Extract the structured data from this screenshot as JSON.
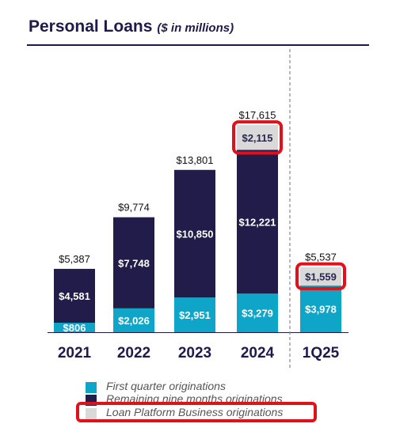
{
  "page": {
    "title": "Personal Loans",
    "subtitle": "($ in millions)"
  },
  "colors": {
    "first_quarter": "#0ea5c9",
    "remaining": "#221c4a",
    "platform": "#d9d9d9",
    "highlight": "#e1111a",
    "axis": "#1e1b4b",
    "divider": "#8a8a8a"
  },
  "legend": [
    {
      "key": "first_quarter",
      "label": "First quarter originations",
      "color": "#0ea5c9"
    },
    {
      "key": "remaining",
      "label": "Remaining nine months originations",
      "color": "#221c4a"
    },
    {
      "key": "platform",
      "label": "Loan Platform Business originations",
      "color": "#d9d9d9",
      "highlighted": true
    }
  ],
  "chart_data": {
    "type": "bar",
    "stacked": true,
    "title": "Personal Loans",
    "subtitle": "($ in millions)",
    "categories": [
      "2021",
      "2022",
      "2023",
      "2024",
      "1Q25"
    ],
    "series": [
      {
        "name": "First quarter originations",
        "key": "first_quarter",
        "values": [
          806,
          2026,
          2951,
          3279,
          3978
        ],
        "labels": [
          "$806",
          "$2,026",
          "$2,951",
          "$3,279",
          "$3,978"
        ]
      },
      {
        "name": "Remaining nine months originations",
        "key": "remaining",
        "values": [
          4581,
          7748,
          10850,
          12221,
          0
        ],
        "labels": [
          "$4,581",
          "$7,748",
          "$10,850",
          "$12,221",
          ""
        ]
      },
      {
        "name": "Loan Platform Business originations",
        "key": "platform",
        "values": [
          0,
          0,
          0,
          2115,
          1559
        ],
        "labels": [
          "",
          "",
          "",
          "$2,115",
          "$1,559"
        ]
      }
    ],
    "totals": [
      5387,
      9774,
      13801,
      17615,
      5537
    ],
    "total_labels": [
      "$5,387",
      "$9,774",
      "$13,801",
      "$17,615",
      "$5,537"
    ],
    "highlighted_segments": [
      {
        "category": "2024",
        "series": "platform"
      },
      {
        "category": "1Q25",
        "series": "platform"
      }
    ],
    "divider_before": "1Q25",
    "legend_position": "bottom",
    "grid": false
  }
}
